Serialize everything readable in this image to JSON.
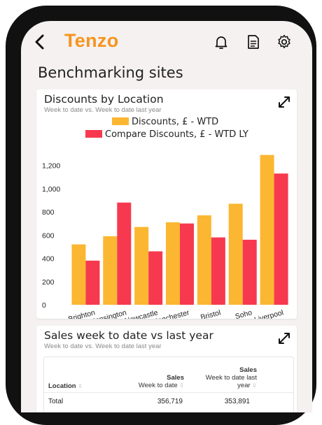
{
  "app": {
    "logo_text": "Tenzo",
    "accent_color": "#f7941d",
    "icons": [
      "back-arrow-icon",
      "bell-icon",
      "document-icon",
      "gear-icon",
      "expand-icon"
    ]
  },
  "page": {
    "title": "Benchmarking sites"
  },
  "discounts_card": {
    "title": "Discounts by Location",
    "subtitle": "Week to date vs. Week to date last year"
  },
  "chart_data": {
    "type": "bar",
    "title": "Discounts by Location",
    "subtitle": "Week to date vs. Week to date last year",
    "categories": [
      "Brighton",
      "Kensington",
      "Newcastle",
      "Manchester",
      "Bristol",
      "Soho",
      "Liverpool"
    ],
    "series": [
      {
        "name": "Discounts, £ - WTD",
        "color": "#fbb731",
        "values": [
          520,
          590,
          670,
          710,
          770,
          870,
          1290
        ]
      },
      {
        "name": "Compare Discounts, £ - WTD LY",
        "color": "#f7394f",
        "values": [
          380,
          880,
          460,
          700,
          580,
          560,
          1130
        ]
      }
    ],
    "yticks": [
      "0",
      "200",
      "400",
      "600",
      "800",
      "1,000",
      "1,200"
    ],
    "ylim": [
      0,
      1300
    ],
    "xlabel": "",
    "ylabel": "",
    "legend_position": "top-center",
    "grid": false
  },
  "sales_card": {
    "title": "Sales week to date vs last year",
    "subtitle": "Week to date vs. Week to date last year",
    "columns": {
      "location": "Location",
      "sales_label": "Sales",
      "sales_sub": "Week to date",
      "sales_ly_label": "Sales",
      "sales_ly_sub1": "Week to date last",
      "sales_ly_sub2": "year"
    },
    "rows": [
      {
        "location": "Total",
        "sales": "356,719",
        "sales_ly": "353,891"
      }
    ]
  }
}
